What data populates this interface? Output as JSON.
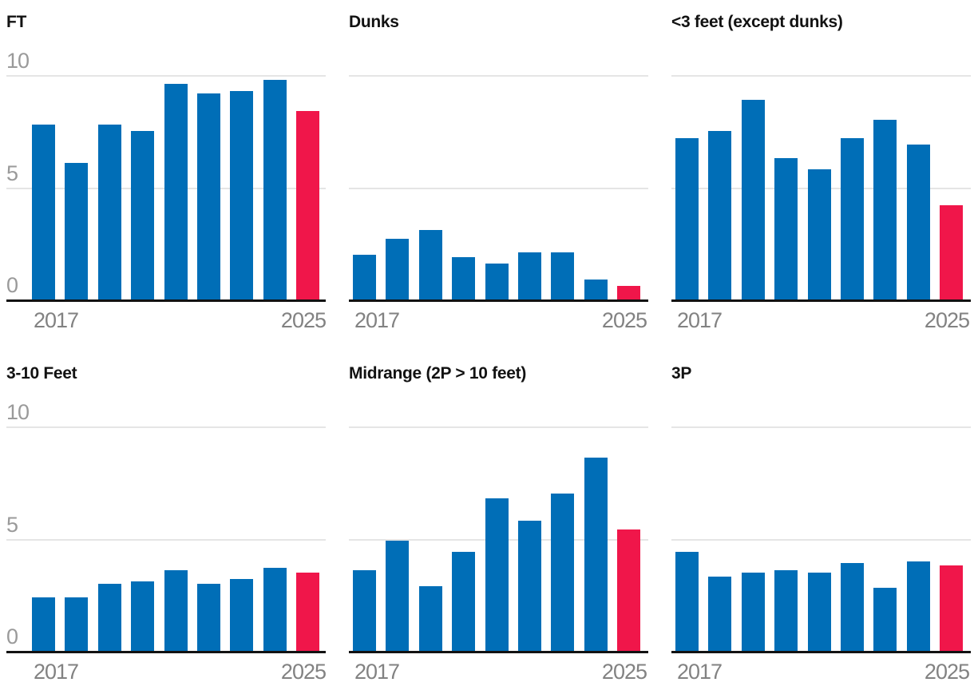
{
  "page": {
    "background": "#ffffff",
    "description": "Small-multiples bar chart grid of shot attempts per game by shot zone, 2017-2025, final season highlighted"
  },
  "chart_data": {
    "type": "bar",
    "layout": "2x3 small multiples",
    "x": [
      2017,
      2018,
      2019,
      2020,
      2021,
      2022,
      2023,
      2024,
      2025
    ],
    "x_tick_labels": [
      "2017",
      "2025"
    ],
    "y_ticks": [
      "0",
      "5",
      "10"
    ],
    "ylim": [
      0,
      10
    ],
    "gridlines_at": [
      5,
      10
    ],
    "legend": "none",
    "highlight_x": 2025,
    "colors": {
      "bar": "#006eb7",
      "highlight_bar": "#f0164a",
      "gridline": "#e5e5e5",
      "axis_line": "#121212",
      "title_text": "#121212",
      "y_tick_text": "#9a9a9a",
      "x_tick_text": "#828282"
    },
    "panels": [
      {
        "title": "FT",
        "show_y_labels": true,
        "values": [
          7.8,
          6.1,
          7.8,
          7.5,
          9.6,
          9.2,
          9.3,
          9.8,
          8.4
        ]
      },
      {
        "title": "Dunks",
        "show_y_labels": false,
        "values": [
          2.0,
          2.7,
          3.1,
          1.9,
          1.6,
          2.1,
          2.1,
          0.9,
          0.6
        ]
      },
      {
        "title": "<3 feet (except dunks)",
        "show_y_labels": false,
        "values": [
          7.2,
          7.5,
          8.9,
          6.3,
          5.8,
          7.2,
          8.0,
          6.9,
          4.2
        ]
      },
      {
        "title": "3-10 Feet",
        "show_y_labels": true,
        "values": [
          2.4,
          2.4,
          3.0,
          3.1,
          3.6,
          3.0,
          3.2,
          3.7,
          3.5
        ]
      },
      {
        "title": "Midrange (2P > 10 feet)",
        "show_y_labels": false,
        "values": [
          3.6,
          4.9,
          2.9,
          4.4,
          6.8,
          5.8,
          7.0,
          8.6,
          5.4
        ]
      },
      {
        "title": "3P",
        "show_y_labels": false,
        "values": [
          4.4,
          3.3,
          3.5,
          3.6,
          3.5,
          3.9,
          2.8,
          4.0,
          3.8
        ]
      }
    ]
  }
}
